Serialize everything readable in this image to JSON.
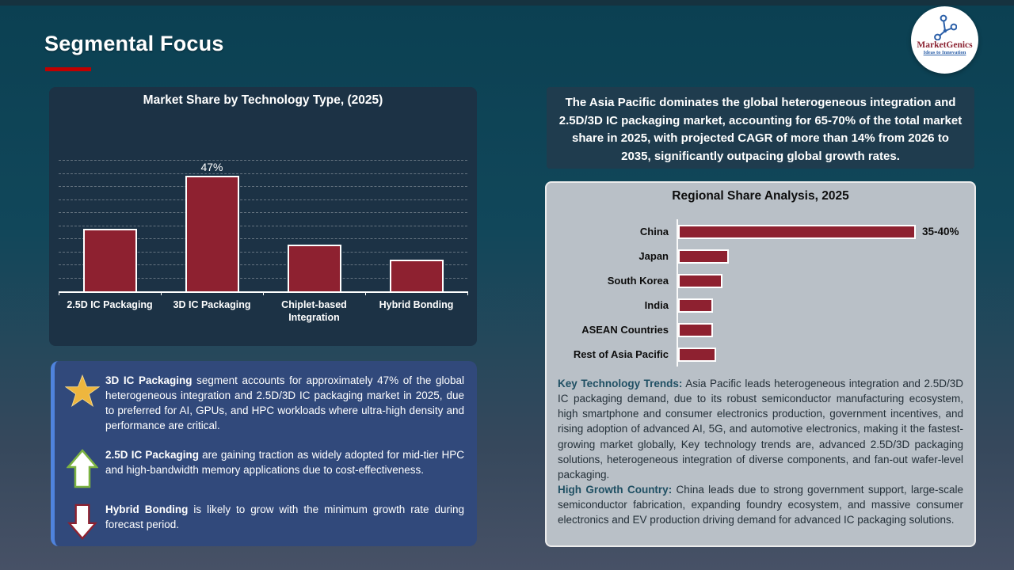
{
  "header": {
    "title": "Segmental Focus"
  },
  "logo": {
    "brand": "MarketGenics",
    "tagline": "Ideas to Innovation",
    "icon": "molecule-network-icon"
  },
  "colors": {
    "bar_fill": "#8e2130",
    "accent_red": "#c00000",
    "panel_navy": "#1c3245",
    "callout_navy": "#1f3c4e",
    "insight_blue": "#31497b",
    "insight_border_blue": "#4f83dd",
    "gray_panel": "#b9c0c7",
    "teal_lead": "#1f4f63",
    "star_gold": "#eeb63e",
    "arrow_green": "#7cb342",
    "arrow_red": "#8e2130"
  },
  "chart_data": [
    {
      "type": "bar",
      "title": "Market Share by Technology Type, (2025)",
      "categories": [
        "2.5D IC Packaging",
        "3D IC Packaging",
        "Chiplet-based Integration",
        "Hybrid Bonding"
      ],
      "values": [
        24,
        47,
        18,
        12
      ],
      "data_labels": [
        "",
        "47%",
        "",
        ""
      ],
      "xlabel": "",
      "ylabel": "",
      "ylim": [
        0,
        50
      ],
      "grid_step": 5,
      "grid": "dashed horizontal",
      "legend": "none",
      "bar_color": "#8e2130"
    },
    {
      "type": "bar-horizontal",
      "title": "Regional Share Analysis, 2025",
      "categories": [
        "China",
        "Japan",
        "South Korea",
        "India",
        "ASEAN Countries",
        "Rest of Asia Pacific"
      ],
      "values": [
        37.5,
        8,
        7,
        5.5,
        5.5,
        6
      ],
      "data_labels": [
        "35-40%",
        "",
        "",
        "",
        "",
        ""
      ],
      "xlabel": "",
      "ylabel": "",
      "xlim": [
        0,
        45
      ],
      "grid": "off",
      "legend": "none",
      "bar_color": "#8e2130"
    }
  ],
  "callout": {
    "text": "The Asia Pacific dominates the global heterogeneous integration and 2.5D/3D IC packaging market, accounting for 65-70% of the total market share in 2025, with projected CAGR of more than 14% from 2026 to 2035, significantly outpacing global growth rates."
  },
  "insights": [
    {
      "icon": "star-icon",
      "lead": "3D IC Packaging",
      "text": " segment accounts for approximately 47% of the global heterogeneous integration and 2.5D/3D IC packaging market in 2025, due to preferred for AI, GPUs, and HPC workloads where ultra-high density and performance are critical."
    },
    {
      "icon": "up-arrow-icon",
      "lead": "2.5D IC Packaging",
      "text": " are gaining traction as widely adopted for mid-tier HPC and high-bandwidth memory applications due to cost-effectiveness."
    },
    {
      "icon": "down-arrow-icon",
      "lead": "Hybrid Bonding",
      "text": " is likely to grow with the minimum growth rate during forecast period."
    }
  ],
  "regional_notes": [
    {
      "lead": "Key Technology Trends:",
      "text": " Asia Pacific leads heterogeneous integration and 2.5D/3D IC packaging demand, due to its robust semiconductor manufacturing ecosystem, high smartphone and consumer electronics production, government incentives, and rising adoption of advanced AI, 5G, and automotive electronics, making it the fastest-growing market globally, Key technology trends are, advanced 2.5D/3D packaging solutions, heterogeneous integration of diverse components, and fan-out wafer-level packaging."
    },
    {
      "lead": "High Growth Country:",
      "text": " China leads due to strong government support, large-scale semiconductor fabrication, expanding foundry ecosystem, and massive consumer electronics and EV production driving demand for advanced IC packaging solutions."
    }
  ]
}
